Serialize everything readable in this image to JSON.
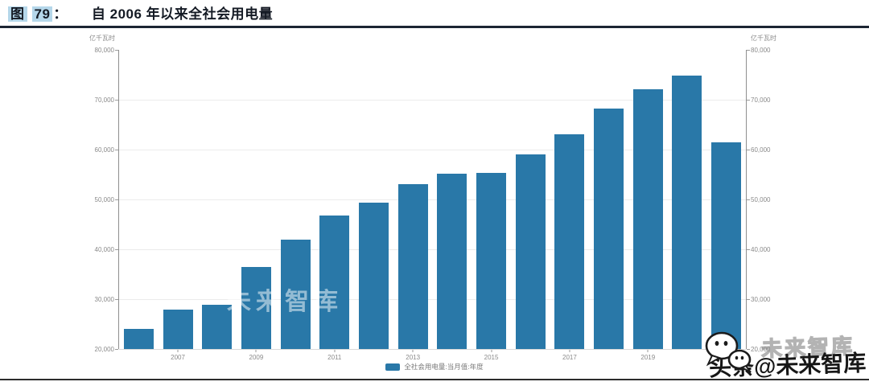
{
  "header": {
    "figure_char": "图",
    "figure_number": "79",
    "colon": "：",
    "title": "自 2006 年以来全社会用电量"
  },
  "chart_data": {
    "type": "bar",
    "title": "自 2006 年以来全社会用电量",
    "unit_label": "亿千瓦时",
    "legend": [
      {
        "label": "全社会用电量:当月值:年度",
        "color": "#2978a8"
      }
    ],
    "legend_position": "bottom-center",
    "bar_color": "#2978a8",
    "grid": true,
    "ylim": [
      20000,
      80000
    ],
    "y_ticks": [
      20000,
      30000,
      40000,
      50000,
      60000,
      70000,
      80000
    ],
    "y_tick_labels": [
      "20,000",
      "30,000",
      "40,000",
      "50,000",
      "60,000",
      "70,000",
      "80,000"
    ],
    "categories": [
      "2006",
      "2007",
      "2008",
      "2009",
      "2010",
      "2011",
      "2012",
      "2013",
      "2014",
      "2015",
      "2016",
      "2017",
      "2018",
      "2019",
      "2020",
      "2021"
    ],
    "x_tick_labels": [
      "2007",
      "2009",
      "2011",
      "2013",
      "2015",
      "2017",
      "2019"
    ],
    "values": [
      24000,
      27900,
      28800,
      36400,
      41900,
      46800,
      49400,
      53100,
      55100,
      55350,
      59100,
      63000,
      68200,
      72100,
      74900,
      61500
    ]
  },
  "watermark": {
    "ghost_text": "未来智库",
    "plot_smudge_text": "未来智库",
    "byline": "头条@未来智库",
    "icon": "wechat-bubbles-icon"
  }
}
